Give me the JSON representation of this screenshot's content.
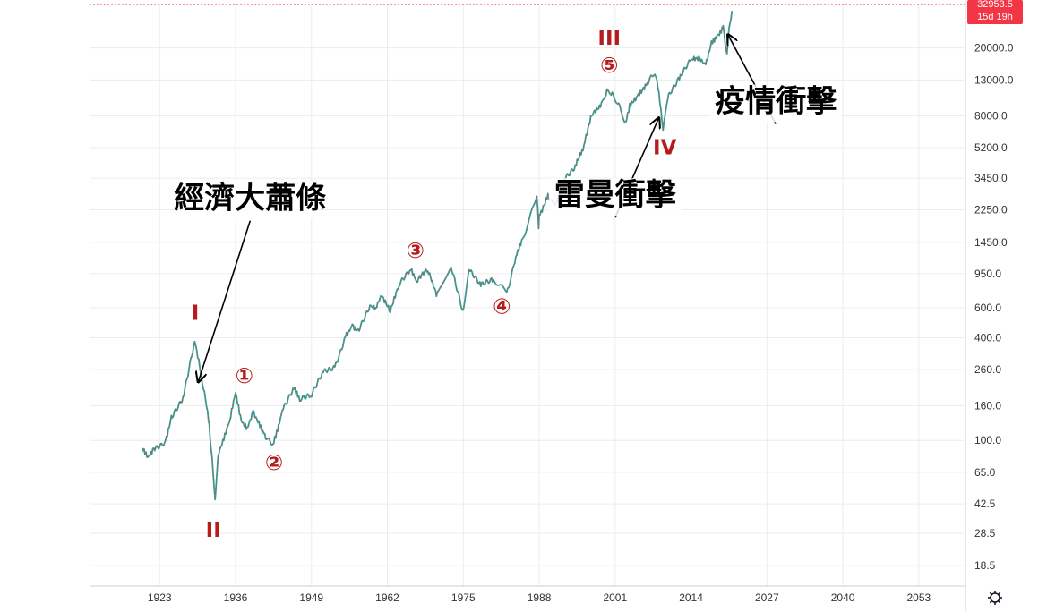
{
  "chart_data": {
    "type": "line",
    "scale": "log",
    "grid": true,
    "xlim": [
      1911,
      2061
    ],
    "ylim": [
      14,
      36000
    ],
    "x_ticks": [
      "1923",
      "1936",
      "1949",
      "1962",
      "1975",
      "1988",
      "2001",
      "2014",
      "2027",
      "2040",
      "2053"
    ],
    "y_ticks": [
      "20000.0",
      "13000.0",
      "8000.0",
      "5200.0",
      "3450.0",
      "2250.0",
      "1450.0",
      "950.0",
      "600.0",
      "400.0",
      "260.0",
      "160.0",
      "100.0",
      "65.0",
      "42.5",
      "28.5",
      "18.5"
    ],
    "last_price_label": "32953.5",
    "countdown_label": "15d 19h",
    "price_color": "#26a69a",
    "accent_color": "#f23645",
    "series": [
      {
        "x": [
          1920,
          1921,
          1922,
          1924,
          1925,
          1927,
          1929,
          1929.7,
          1930.5,
          1931.2,
          1931.8,
          1932.5,
          1933,
          1934,
          1935,
          1936,
          1937,
          1938,
          1939,
          1940,
          1941,
          1942.4,
          1944,
          1946,
          1947,
          1949,
          1951,
          1953,
          1955,
          1956,
          1957,
          1959,
          1960,
          1961,
          1962.5,
          1964,
          1966,
          1967,
          1968.9,
          1970.4,
          1972.9,
          1974.9,
          1976,
          1978,
          1980,
          1982.6,
          1984,
          1985,
          1987.6,
          1987.9,
          1988,
          1989.5,
          1990.7,
          1992,
          1994,
          1995.5,
          1997,
          1998.5,
          1999.6,
          2000.5,
          2001.6,
          2002.8,
          2003.5,
          2005,
          2006.5,
          2007.8,
          2008.5,
          2009.2,
          2010,
          2012,
          2014,
          2015.5,
          2016.5,
          2017.5,
          2018.5,
          2019.5,
          2020.15,
          2020.5,
          2021
        ],
        "values": [
          90,
          80,
          90,
          100,
          140,
          180,
          380,
          300,
          200,
          150,
          90,
          45,
          80,
          100,
          130,
          190,
          130,
          120,
          150,
          130,
          110,
          95,
          150,
          200,
          170,
          180,
          250,
          270,
          430,
          480,
          450,
          620,
          600,
          700,
          560,
          800,
          990,
          850,
          985,
          700,
          1040,
          580,
          1000,
          800,
          850,
          780,
          1200,
          1500,
          2700,
          1750,
          2100,
          2800,
          2400,
          3300,
          3850,
          5000,
          8000,
          9000,
          11500,
          11000,
          9500,
          7300,
          9500,
          10800,
          12500,
          14000,
          11000,
          6600,
          10000,
          13000,
          17000,
          17500,
          16000,
          22000,
          24000,
          27000,
          18500,
          26000,
          33000
        ]
      }
    ],
    "wave_labels": [
      {
        "text": "I",
        "x": 1929.1,
        "y": 560
      },
      {
        "text": "II",
        "x": 1932.2,
        "y": 30
      },
      {
        "text": "①",
        "x": 1937.5,
        "y": 240
      },
      {
        "text": "②",
        "x": 1942.6,
        "y": 74
      },
      {
        "text": "③",
        "x": 1966.8,
        "y": 1300
      },
      {
        "text": "④",
        "x": 1981.6,
        "y": 610
      },
      {
        "text": "III",
        "x": 2000.0,
        "y": 23000
      },
      {
        "text": "⑤",
        "x": 2000.0,
        "y": 15800
      },
      {
        "text": "IV",
        "x": 2009.5,
        "y": 5250
      }
    ],
    "annotations": [
      {
        "text": "經濟大蕭條",
        "x": 1938.5,
        "y": 2300,
        "arrow_to": {
          "x": 1929.6,
          "y": 220
        }
      },
      {
        "text": "雷曼衝擊",
        "x": 2001.0,
        "y": 2400,
        "arrow_to": {
          "x": 2008.5,
          "y": 7800
        }
      },
      {
        "text": "疫情衝擊",
        "x": 2028.5,
        "y": 8500,
        "arrow_to": {
          "x": 2020.3,
          "y": 24000
        }
      }
    ]
  }
}
